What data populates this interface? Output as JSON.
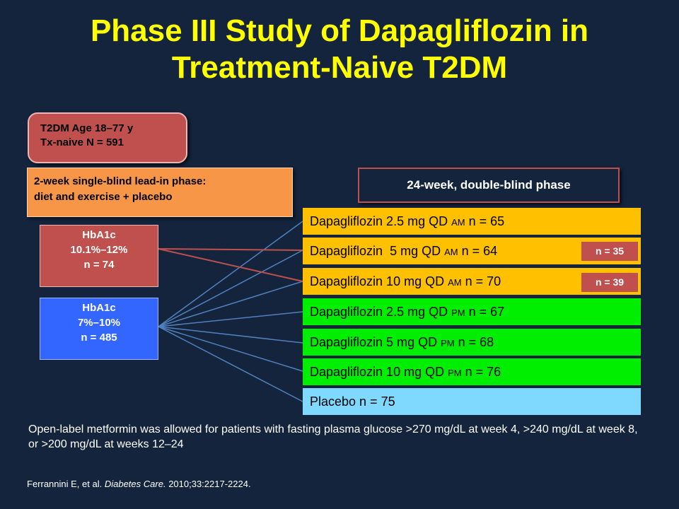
{
  "title": {
    "line1": "Phase III Study of Dapagliflozin in",
    "line2": "Treatment-Naive T2DM"
  },
  "population": {
    "line1": "T2DM Age 18–77 y",
    "line2": "Tx-naive N = 591"
  },
  "lead_in": {
    "line1": "2-week single-blind lead-in phase:",
    "line2": "diet and exercise + placebo"
  },
  "double_blind": "24-week, double-blind phase",
  "hba1c_high": {
    "label": "HbA1c",
    "range": "10.1%–12%",
    "n": "n = 74"
  },
  "hba1c_main": {
    "label": "HbA1c",
    "range": "7%–10%",
    "n": "n = 485"
  },
  "arms": [
    {
      "text": "Dapagliflozin 2.5 mg QD",
      "time": "AM",
      "n": "n = 65",
      "color": "#ffc000"
    },
    {
      "text": "Dapagliflozin  5 mg QD",
      "time": "AM",
      "n": "n = 64",
      "color": "#ffc000"
    },
    {
      "text": "Dapagliflozin 10 mg QD",
      "time": "AM",
      "n": "n = 70",
      "color": "#ffc000"
    },
    {
      "text": "Dapagliflozin 2.5 mg QD",
      "time": "PM",
      "n": "n = 67",
      "color": "#00ee00"
    },
    {
      "text": "Dapagliflozin 5 mg QD",
      "time": "PM",
      "n": "n = 68",
      "color": "#00ee00"
    },
    {
      "text": "Dapagliflozin 10 mg QD",
      "time": "PM",
      "n": "n = 76",
      "color": "#00ee00"
    },
    {
      "text": "Placebo n = 75",
      "time": "",
      "n": "",
      "color": "#7fd9ff"
    }
  ],
  "high_hba1c_arms": [
    {
      "n": "n = 35"
    },
    {
      "n": "n = 39"
    }
  ],
  "note": "Open-label metformin was allowed for patients with fasting plasma glucose >270 mg/dL at week 4, >240 mg/dL at week 8, or >200 mg/dL at weeks 12–24",
  "reference": {
    "authors": "Ferrannini E, et al.",
    "journal": "Diabetes Care.",
    "citation": "2010;33:2217-2224."
  },
  "colors": {
    "background": "#14243d",
    "title": "#ffff00",
    "connector_blue": "#4f81bd",
    "connector_red": "#c0504d"
  }
}
